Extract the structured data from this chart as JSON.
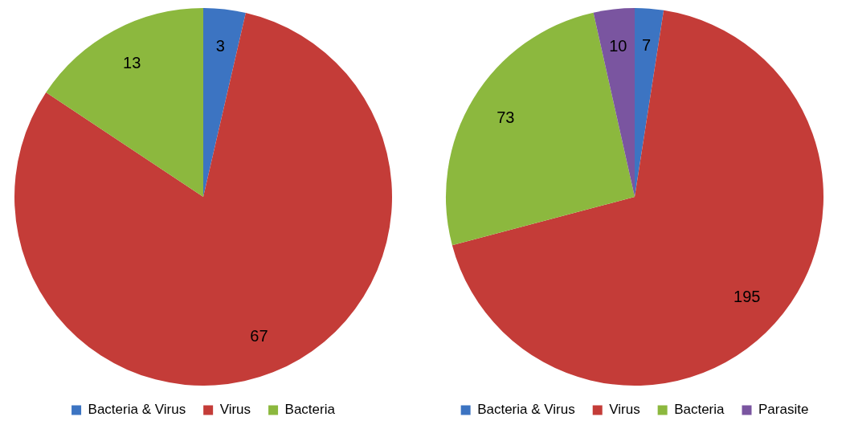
{
  "chart_data": [
    {
      "type": "pie",
      "categories": [
        "Bacteria & Virus",
        "Virus",
        "Bacteria"
      ],
      "values": [
        3,
        67,
        13
      ],
      "colors": [
        "#3c74c2",
        "#c43c38",
        "#8cb83e"
      ],
      "data_labels": true,
      "legend": "bottom"
    },
    {
      "type": "pie",
      "categories": [
        "Bacteria & Virus",
        "Virus",
        "Bacteria",
        "Parasite"
      ],
      "values": [
        7,
        195,
        73,
        10
      ],
      "colors": [
        "#3c74c2",
        "#c43c38",
        "#8cb83e",
        "#7a55a0"
      ],
      "data_labels": true,
      "legend": "bottom"
    }
  ]
}
